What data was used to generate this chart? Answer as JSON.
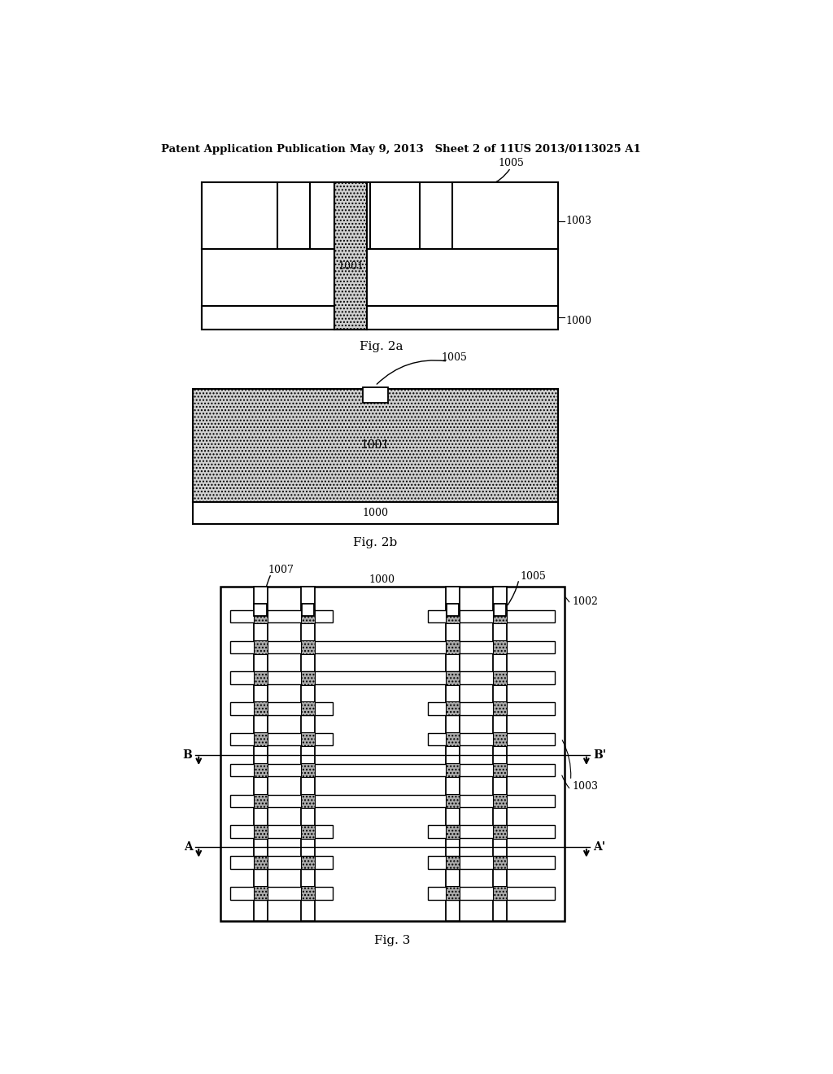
{
  "bg_color": "#ffffff",
  "header_text1": "Patent Application Publication",
  "header_text2": "May 9, 2013   Sheet 2 of 11",
  "header_text3": "US 2013/0113025 A1",
  "fig2a_label": "Fig. 2a",
  "fig2b_label": "Fig. 2b",
  "fig3_label": "Fig. 3",
  "line_color": "#000000",
  "dot_fc": "#d0d0d0",
  "gray_sq_fc": "#aaaaaa",
  "white_fill": "#ffffff"
}
